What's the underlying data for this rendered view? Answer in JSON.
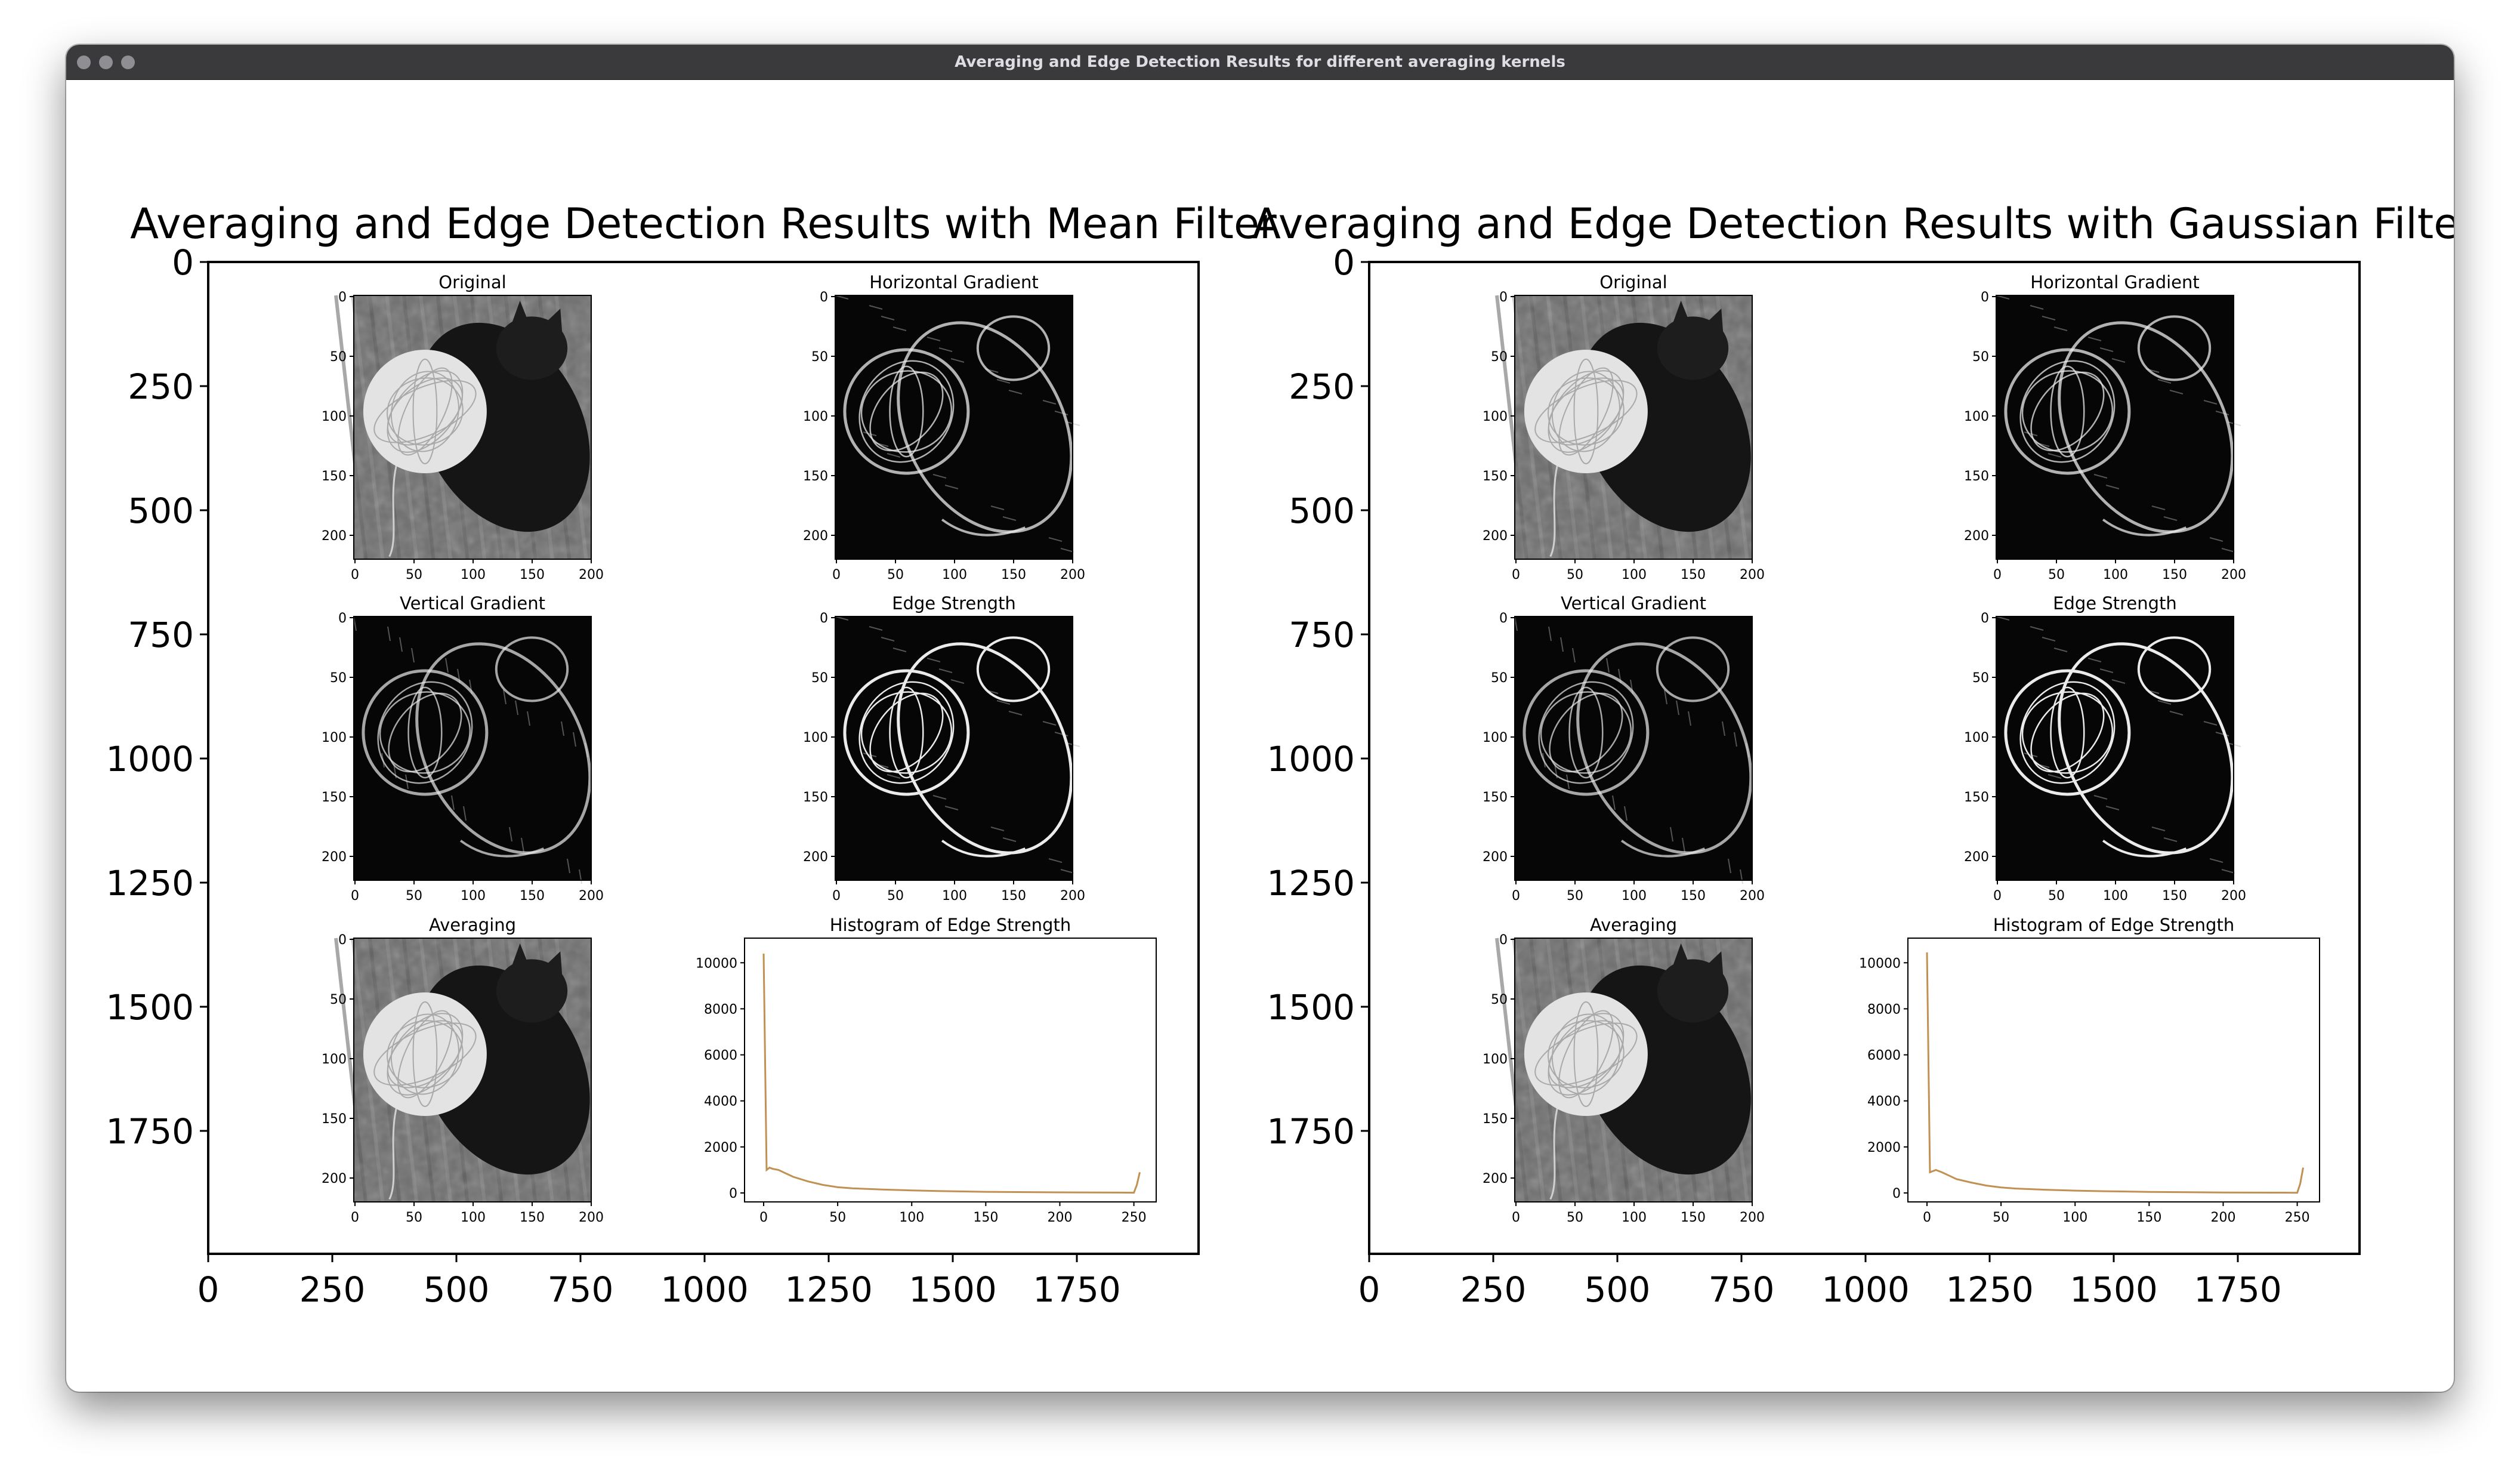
{
  "window": {
    "title": "Averaging and Edge Detection Results for different averaging kernels"
  },
  "icons": {
    "close": "close-dot",
    "minimize": "minimize-dot",
    "zoom": "zoom-dot"
  },
  "colors": {
    "histogram_line": "#c09152",
    "titlebar": "#3a3a3c"
  },
  "figures": [
    {
      "title": "Averaging and Edge Detection Results with Mean Filter",
      "outer_axes": {
        "yticks": [
          "0",
          "250",
          "500",
          "750",
          "1000",
          "1250",
          "1500",
          "1750"
        ],
        "xticks": [
          "0",
          "250",
          "500",
          "750",
          "1000",
          "1250",
          "1500",
          "1750"
        ]
      },
      "panels": [
        {
          "title": "Original",
          "kind": "original"
        },
        {
          "title": "Horizontal Gradient",
          "kind": "hgrad"
        },
        {
          "title": "Vertical Gradient",
          "kind": "vgrad"
        },
        {
          "title": "Edge Strength",
          "kind": "edge"
        },
        {
          "title": "Averaging",
          "kind": "avg"
        }
      ],
      "image_ticks": {
        "x": [
          "0",
          "50",
          "100",
          "150",
          "200"
        ],
        "y": [
          "0",
          "50",
          "100",
          "150",
          "200"
        ]
      },
      "histogram": {
        "title": "Histogram of Edge Strength",
        "xticks": [
          "0",
          "50",
          "100",
          "150",
          "200",
          "250"
        ],
        "yticks": [
          "0",
          "2000",
          "4000",
          "6000",
          "8000",
          "10000"
        ]
      }
    },
    {
      "title": "Averaging and Edge Detection Results with Gaussian Filter",
      "outer_axes": {
        "yticks": [
          "0",
          "250",
          "500",
          "750",
          "1000",
          "1250",
          "1500",
          "1750"
        ],
        "xticks": [
          "0",
          "250",
          "500",
          "750",
          "1000",
          "1250",
          "1500",
          "1750"
        ]
      },
      "panels": [
        {
          "title": "Original",
          "kind": "original"
        },
        {
          "title": "Horizontal Gradient",
          "kind": "hgrad"
        },
        {
          "title": "Vertical Gradient",
          "kind": "vgrad"
        },
        {
          "title": "Edge Strength",
          "kind": "edge"
        },
        {
          "title": "Averaging",
          "kind": "avg"
        }
      ],
      "image_ticks": {
        "x": [
          "0",
          "50",
          "100",
          "150",
          "200"
        ],
        "y": [
          "0",
          "50",
          "100",
          "150",
          "200"
        ]
      },
      "histogram": {
        "title": "Histogram of Edge Strength",
        "xticks": [
          "0",
          "50",
          "100",
          "150",
          "200",
          "250"
        ],
        "yticks": [
          "0",
          "2000",
          "4000",
          "6000",
          "8000",
          "10000"
        ]
      }
    }
  ],
  "chart_data": [
    {
      "type": "line",
      "title": "Histogram of Edge Strength",
      "xlim": [
        0,
        255
      ],
      "ylim": [
        0,
        10500
      ],
      "x": [
        0,
        2,
        4,
        6,
        10,
        15,
        20,
        30,
        40,
        50,
        60,
        80,
        100,
        120,
        150,
        200,
        240,
        250,
        252,
        254
      ],
      "y": [
        10400,
        1000,
        1100,
        1050,
        1000,
        850,
        700,
        500,
        350,
        250,
        200,
        150,
        110,
        80,
        50,
        25,
        15,
        10,
        350,
        900
      ]
    },
    {
      "type": "line",
      "title": "Histogram of Edge Strength",
      "xlim": [
        0,
        255
      ],
      "ylim": [
        0,
        10500
      ],
      "x": [
        0,
        2,
        4,
        6,
        10,
        15,
        20,
        30,
        40,
        50,
        60,
        80,
        100,
        120,
        150,
        200,
        240,
        250,
        252,
        254
      ],
      "y": [
        10450,
        900,
        950,
        1000,
        900,
        750,
        600,
        450,
        320,
        240,
        190,
        140,
        100,
        75,
        45,
        20,
        12,
        8,
        400,
        1100
      ]
    }
  ]
}
